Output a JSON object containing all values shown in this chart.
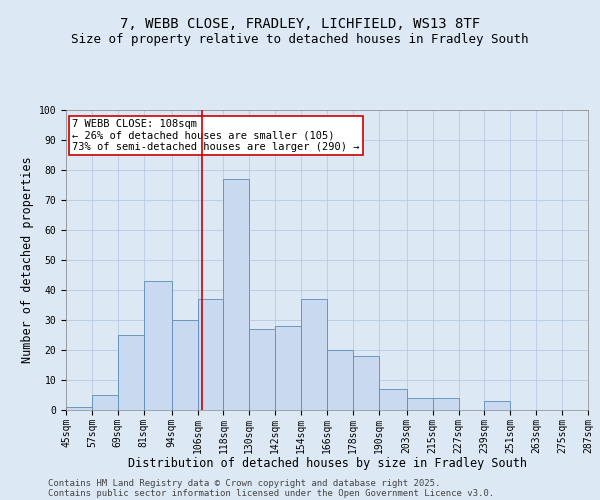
{
  "title1": "7, WEBB CLOSE, FRADLEY, LICHFIELD, WS13 8TF",
  "title2": "Size of property relative to detached houses in Fradley South",
  "xlabel": "Distribution of detached houses by size in Fradley South",
  "ylabel": "Number of detached properties",
  "bin_edges": [
    45,
    57,
    69,
    81,
    94,
    106,
    118,
    130,
    142,
    154,
    166,
    178,
    190,
    203,
    215,
    227,
    239,
    251,
    263,
    275,
    287
  ],
  "bar_heights": [
    1,
    5,
    25,
    43,
    30,
    37,
    77,
    27,
    28,
    37,
    20,
    18,
    7,
    4,
    4,
    0,
    3,
    0,
    0,
    0
  ],
  "bar_color": "#c9d9f0",
  "bar_edgecolor": "#5b8db8",
  "reference_line_x": 108,
  "annotation_text": "7 WEBB CLOSE: 108sqm\n← 26% of detached houses are smaller (105)\n73% of semi-detached houses are larger (290) →",
  "annotation_box_color": "#ffffff",
  "annotation_box_edgecolor": "#cc0000",
  "annotation_text_color": "#000000",
  "reference_line_color": "#cc0000",
  "ylim": [
    0,
    100
  ],
  "yticks": [
    0,
    10,
    20,
    30,
    40,
    50,
    60,
    70,
    80,
    90,
    100
  ],
  "grid_color": "#b0c4de",
  "background_color": "#dce9f5",
  "plot_bg_color": "#dce9f5",
  "footer1": "Contains HM Land Registry data © Crown copyright and database right 2025.",
  "footer2": "Contains public sector information licensed under the Open Government Licence v3.0.",
  "title1_fontsize": 10,
  "title2_fontsize": 9,
  "tick_label_fontsize": 7,
  "axis_label_fontsize": 8.5,
  "annotation_fontsize": 7.5,
  "footer_fontsize": 6.5
}
